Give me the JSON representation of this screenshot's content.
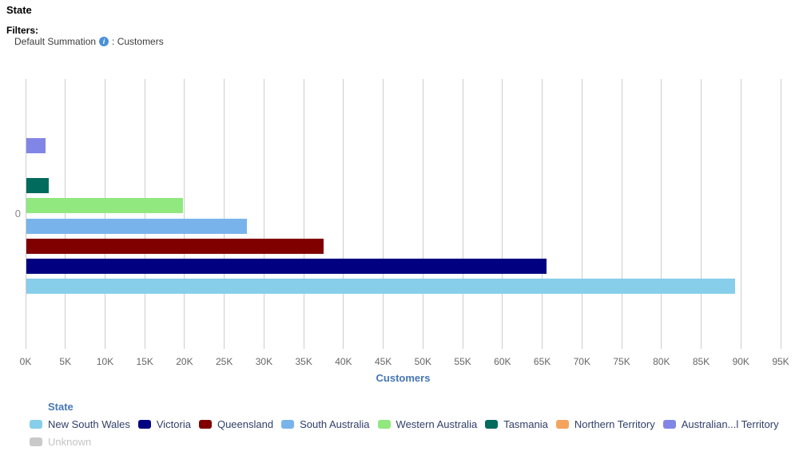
{
  "header": {
    "title": "State",
    "filters_label": "Filters:",
    "filter_before": "Default Summation",
    "filter_after": ": Customers"
  },
  "chart_data": {
    "type": "bar",
    "orientation": "horizontal",
    "title": "",
    "xlabel": "Customers",
    "category_axis_label": "0",
    "xlim": [
      0,
      95000
    ],
    "grid": "vertical",
    "x_ticks": [
      "0K",
      "5K",
      "10K",
      "15K",
      "20K",
      "25K",
      "30K",
      "35K",
      "40K",
      "45K",
      "50K",
      "55K",
      "60K",
      "65K",
      "70K",
      "75K",
      "80K",
      "85K",
      "90K",
      "95K"
    ],
    "bars": [
      {
        "state": "Unknown",
        "value": 0,
        "color": "#c9c9c9",
        "hidden": true
      },
      {
        "state": "Australian Capital Territory",
        "value": 2400,
        "color": "#8186e6",
        "hidden": false
      },
      {
        "state": "Northern Territory",
        "value": 0,
        "color": "#f4a45b",
        "hidden": false
      },
      {
        "state": "Tasmania",
        "value": 2800,
        "color": "#016b5d",
        "hidden": false
      },
      {
        "state": "Western Australia",
        "value": 19700,
        "color": "#90e87e",
        "hidden": false
      },
      {
        "state": "South Australia",
        "value": 27700,
        "color": "#78b4eb",
        "hidden": false
      },
      {
        "state": "Queensland",
        "value": 37400,
        "color": "#800000",
        "hidden": false
      },
      {
        "state": "Victoria",
        "value": 65400,
        "color": "#000080",
        "hidden": false
      },
      {
        "state": "New South Wales",
        "value": 89200,
        "color": "#87ceeb",
        "hidden": false
      }
    ]
  },
  "legend": {
    "title": "State",
    "items": [
      {
        "label": "New South Wales",
        "color": "#87ceeb",
        "disabled": false
      },
      {
        "label": "Victoria",
        "color": "#000080",
        "disabled": false
      },
      {
        "label": "Queensland",
        "color": "#800000",
        "disabled": false
      },
      {
        "label": "South Australia",
        "color": "#78b4eb",
        "disabled": false
      },
      {
        "label": "Western Australia",
        "color": "#90e87e",
        "disabled": false
      },
      {
        "label": "Tasmania",
        "color": "#016b5d",
        "disabled": false
      },
      {
        "label": "Northern Territory",
        "color": "#f4a45b",
        "disabled": false
      },
      {
        "label": "Australian...l Territory",
        "color": "#8186e6",
        "disabled": false
      },
      {
        "label": "Unknown",
        "color": "#c9c9c9",
        "disabled": true
      }
    ]
  }
}
